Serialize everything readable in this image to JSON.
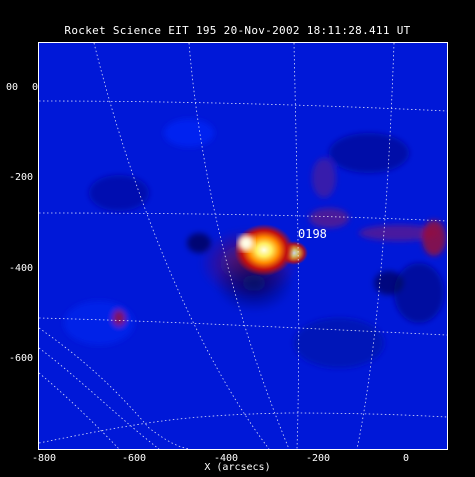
{
  "title": "Rocket Science EIT 195 20-Nov-2002 18:11:28.411 UT",
  "x_axis": {
    "label": "X (arcsecs)",
    "ticks": [
      "-800",
      "-600",
      "-400",
      "-200",
      "0"
    ]
  },
  "y_axis": {
    "ticks": [
      "0",
      "-200",
      "-400",
      "-600"
    ],
    "partial_label": "00"
  },
  "region_label": "0198",
  "colors": {
    "background": "#0018d8",
    "hot_core": "#ffffe0",
    "grid": "#ffffff"
  }
}
